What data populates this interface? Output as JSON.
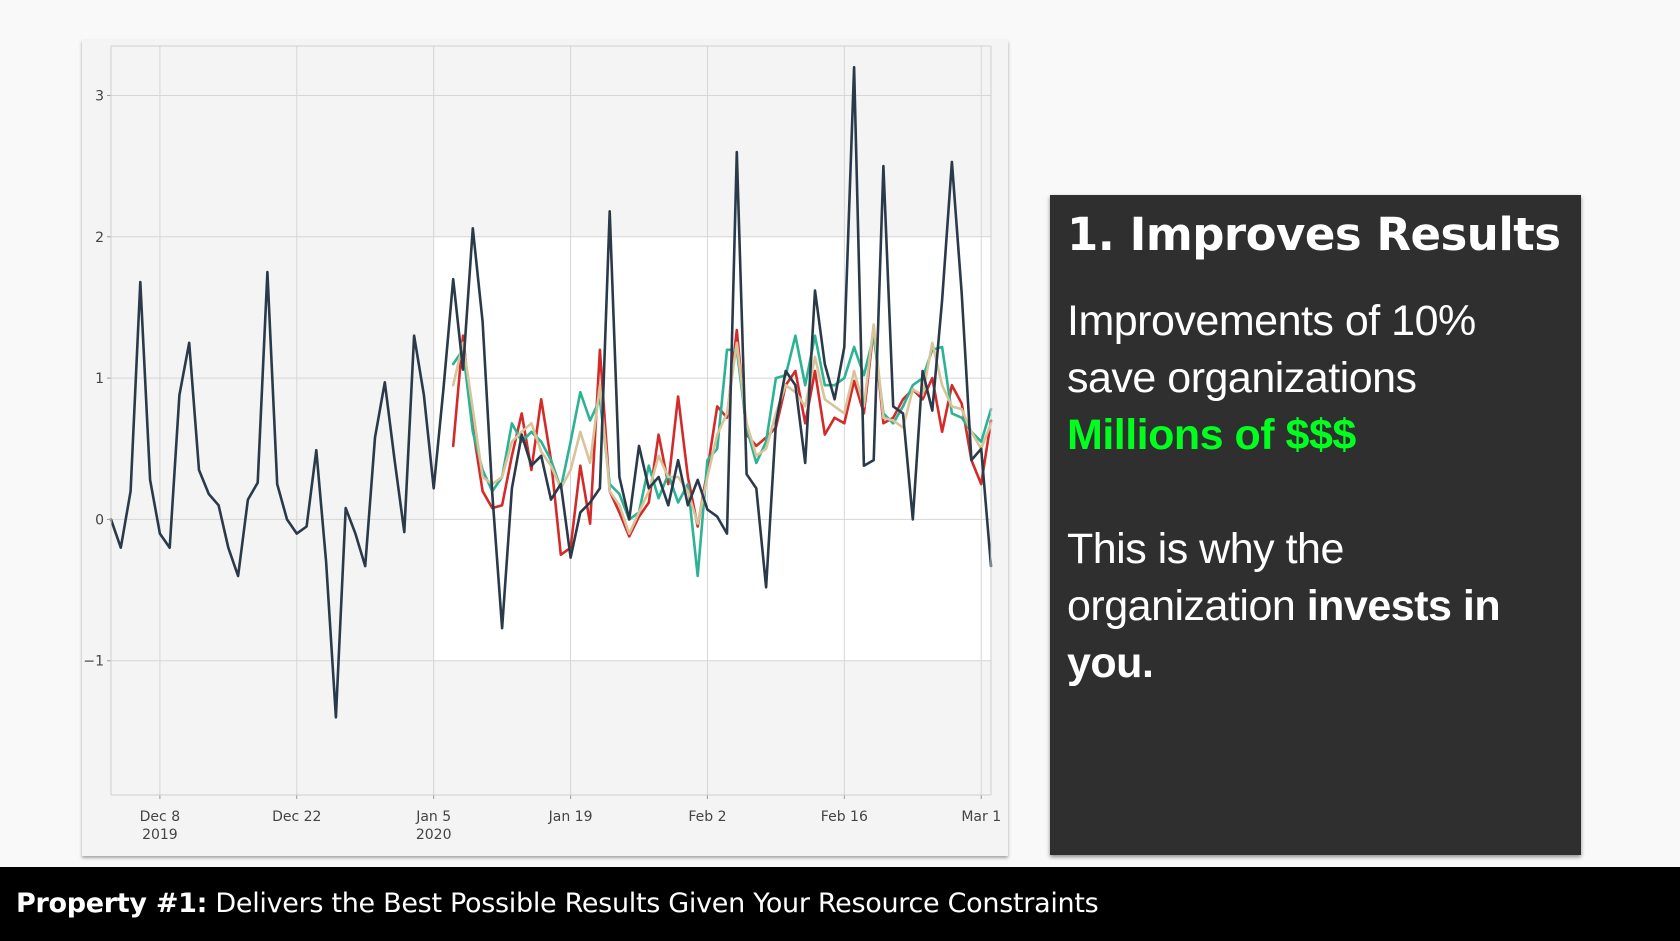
{
  "panel": {
    "heading": "1. Improves Results",
    "line1": "Improvements of 10%",
    "line2": "save organizations",
    "highlight": "Millions of $$$",
    "line4": "This is why the",
    "line5_prefix": "organization ",
    "line5_bold": "invests in",
    "line6_bold": "you."
  },
  "footer": {
    "bold_label": "Property #1:",
    "text": " Delivers the Best Possible Results Given Your Resource Constraints"
  },
  "colors": {
    "actual": "#2a3a4a",
    "red": "#d42a2a",
    "teal": "#2bb394",
    "tan": "#d9c398",
    "highlight_green": "#00ff1e",
    "panel_bg": "#2f2f2f"
  },
  "chart_data": {
    "type": "line",
    "x_start": "2019-12-03",
    "x_end": "2020-03-02",
    "xlim": [
      "2019-12-03",
      "2020-03-02"
    ],
    "ylim": [
      -1.95,
      3.35
    ],
    "y_ticks": [
      3,
      2,
      1,
      0,
      -1
    ],
    "y_tick_labels": [
      "3",
      "2",
      "1",
      "0",
      "−1"
    ],
    "x_ticks": [
      {
        "date": "2019-12-08",
        "label": "Dec 8",
        "sublabel": "2019"
      },
      {
        "date": "2019-12-22",
        "label": "Dec 22",
        "sublabel": ""
      },
      {
        "date": "2020-01-05",
        "label": "Jan 5",
        "sublabel": "2020"
      },
      {
        "date": "2020-01-19",
        "label": "Jan 19",
        "sublabel": ""
      },
      {
        "date": "2020-02-02",
        "label": "Feb 2",
        "sublabel": ""
      },
      {
        "date": "2020-02-16",
        "label": "Feb 16",
        "sublabel": ""
      },
      {
        "date": "2020-03-01",
        "label": "Mar 1",
        "sublabel": ""
      }
    ],
    "highlight_region": {
      "x_from": "2020-01-05",
      "x_to": "2020-03-02",
      "y_from": -1,
      "y_to": 2
    },
    "grid": true,
    "series": [
      {
        "color_key": "actual",
        "x": [
          "2019-12-03",
          "2019-12-04",
          "2019-12-05",
          "2019-12-06",
          "2019-12-07",
          "2019-12-08",
          "2019-12-09",
          "2019-12-10",
          "2019-12-11",
          "2019-12-12",
          "2019-12-13",
          "2019-12-14",
          "2019-12-15",
          "2019-12-16",
          "2019-12-17",
          "2019-12-18",
          "2019-12-19",
          "2019-12-20",
          "2019-12-21",
          "2019-12-22",
          "2019-12-23",
          "2019-12-24",
          "2019-12-25",
          "2019-12-26",
          "2019-12-27",
          "2019-12-28",
          "2019-12-29",
          "2019-12-30",
          "2019-12-31",
          "2020-01-01",
          "2020-01-02",
          "2020-01-03",
          "2020-01-04",
          "2020-01-05",
          "2020-01-06",
          "2020-01-07",
          "2020-01-08",
          "2020-01-09",
          "2020-01-10",
          "2020-01-11",
          "2020-01-12",
          "2020-01-13",
          "2020-01-14",
          "2020-01-15",
          "2020-01-16",
          "2020-01-17",
          "2020-01-18",
          "2020-01-19",
          "2020-01-20",
          "2020-01-21",
          "2020-01-22",
          "2020-01-23",
          "2020-01-24",
          "2020-01-25",
          "2020-01-26",
          "2020-01-27",
          "2020-01-28",
          "2020-01-29",
          "2020-01-30",
          "2020-01-31",
          "2020-02-01",
          "2020-02-02",
          "2020-02-03",
          "2020-02-04",
          "2020-02-05",
          "2020-02-06",
          "2020-02-07",
          "2020-02-08",
          "2020-02-09",
          "2020-02-10",
          "2020-02-11",
          "2020-02-12",
          "2020-02-13",
          "2020-02-14",
          "2020-02-15",
          "2020-02-16",
          "2020-02-17",
          "2020-02-18",
          "2020-02-19",
          "2020-02-20",
          "2020-02-21",
          "2020-02-22",
          "2020-02-23",
          "2020-02-24",
          "2020-02-25",
          "2020-02-26",
          "2020-02-27",
          "2020-02-28",
          "2020-02-29",
          "2020-03-01",
          "2020-03-02"
        ],
        "y": [
          0.0,
          -0.2,
          0.2,
          1.68,
          0.28,
          -0.1,
          -0.2,
          0.88,
          1.25,
          0.35,
          0.18,
          0.1,
          -0.2,
          -0.4,
          0.14,
          0.26,
          1.75,
          0.25,
          0.0,
          -0.1,
          -0.05,
          0.49,
          -0.3,
          -1.4,
          0.08,
          -0.1,
          -0.33,
          0.58,
          0.97,
          0.42,
          -0.09,
          1.3,
          0.88,
          0.22,
          0.92,
          1.7,
          1.06,
          2.06,
          1.4,
          0.18,
          -0.77,
          0.22,
          0.6,
          0.38,
          0.45,
          0.14,
          0.25,
          -0.27,
          0.05,
          0.12,
          0.22,
          2.18,
          0.3,
          0.0,
          0.52,
          0.22,
          0.3,
          0.1,
          0.42,
          0.1,
          0.28,
          0.07,
          0.02,
          -0.1,
          2.6,
          0.32,
          0.22,
          -0.48,
          0.68,
          1.05,
          0.95,
          0.4,
          1.62,
          1.1,
          0.85,
          1.22,
          3.2,
          0.38,
          0.42,
          2.5,
          0.8,
          0.75,
          0.0,
          1.05,
          0.77,
          1.55,
          2.53,
          1.6,
          0.42,
          0.5,
          -0.33
        ]
      },
      {
        "color_key": "red",
        "x": [
          "2020-01-07",
          "2020-01-08",
          "2020-01-09",
          "2020-01-10",
          "2020-01-11",
          "2020-01-12",
          "2020-01-13",
          "2020-01-14",
          "2020-01-15",
          "2020-01-16",
          "2020-01-17",
          "2020-01-18",
          "2020-01-19",
          "2020-01-20",
          "2020-01-21",
          "2020-01-22",
          "2020-01-23",
          "2020-01-24",
          "2020-01-25",
          "2020-01-26",
          "2020-01-27",
          "2020-01-28",
          "2020-01-29",
          "2020-01-30",
          "2020-01-31",
          "2020-02-01",
          "2020-02-02",
          "2020-02-03",
          "2020-02-04",
          "2020-02-05",
          "2020-02-06",
          "2020-02-07",
          "2020-02-08",
          "2020-02-09",
          "2020-02-10",
          "2020-02-11",
          "2020-02-12",
          "2020-02-13",
          "2020-02-14",
          "2020-02-15",
          "2020-02-16",
          "2020-02-17",
          "2020-02-18",
          "2020-02-19",
          "2020-02-20",
          "2020-02-21",
          "2020-02-22",
          "2020-02-23",
          "2020-02-24",
          "2020-02-25",
          "2020-02-26",
          "2020-02-27",
          "2020-02-28",
          "2020-02-29",
          "2020-03-01",
          "2020-03-02"
        ],
        "y": [
          0.52,
          1.3,
          0.65,
          0.2,
          0.08,
          0.1,
          0.45,
          0.75,
          0.35,
          0.85,
          0.42,
          -0.25,
          -0.2,
          0.38,
          -0.03,
          1.2,
          0.2,
          0.05,
          -0.12,
          0.02,
          0.12,
          0.6,
          0.25,
          0.87,
          0.3,
          -0.05,
          0.35,
          0.8,
          0.72,
          1.34,
          0.6,
          0.52,
          0.58,
          0.65,
          0.95,
          1.05,
          0.68,
          1.05,
          0.6,
          0.72,
          0.68,
          0.98,
          0.75,
          1.35,
          0.68,
          0.72,
          0.85,
          0.92,
          0.85,
          1.0,
          0.62,
          0.95,
          0.82,
          0.42,
          0.25,
          0.7
        ]
      },
      {
        "color_key": "teal",
        "x": [
          "2020-01-07",
          "2020-01-08",
          "2020-01-09",
          "2020-01-10",
          "2020-01-11",
          "2020-01-12",
          "2020-01-13",
          "2020-01-14",
          "2020-01-15",
          "2020-01-16",
          "2020-01-17",
          "2020-01-18",
          "2020-01-19",
          "2020-01-20",
          "2020-01-21",
          "2020-01-22",
          "2020-01-23",
          "2020-01-24",
          "2020-01-25",
          "2020-01-26",
          "2020-01-27",
          "2020-01-28",
          "2020-01-29",
          "2020-01-30",
          "2020-01-31",
          "2020-02-01",
          "2020-02-02",
          "2020-02-03",
          "2020-02-04",
          "2020-02-05",
          "2020-02-06",
          "2020-02-07",
          "2020-02-08",
          "2020-02-09",
          "2020-02-10",
          "2020-02-11",
          "2020-02-12",
          "2020-02-13",
          "2020-02-14",
          "2020-02-15",
          "2020-02-16",
          "2020-02-17",
          "2020-02-18",
          "2020-02-19",
          "2020-02-20",
          "2020-02-21",
          "2020-02-22",
          "2020-02-23",
          "2020-02-24",
          "2020-02-25",
          "2020-02-26",
          "2020-02-27",
          "2020-02-28",
          "2020-02-29",
          "2020-03-01",
          "2020-03-02"
        ],
        "y": [
          1.1,
          1.2,
          0.62,
          0.35,
          0.2,
          0.3,
          0.68,
          0.55,
          0.62,
          0.55,
          0.42,
          0.22,
          0.55,
          0.9,
          0.7,
          0.85,
          0.25,
          0.18,
          0.0,
          0.05,
          0.38,
          0.15,
          0.32,
          0.12,
          0.25,
          -0.4,
          0.42,
          0.5,
          1.2,
          1.2,
          0.65,
          0.4,
          0.55,
          1.0,
          1.02,
          1.3,
          0.95,
          1.3,
          0.95,
          0.95,
          1.0,
          1.22,
          1.02,
          1.3,
          0.75,
          0.68,
          0.8,
          0.95,
          1.0,
          1.2,
          1.22,
          0.75,
          0.72,
          0.62,
          0.55,
          0.78
        ]
      },
      {
        "color_key": "tan",
        "x": [
          "2020-01-07",
          "2020-01-08",
          "2020-01-09",
          "2020-01-10",
          "2020-01-11",
          "2020-01-12",
          "2020-01-13",
          "2020-01-14",
          "2020-01-15",
          "2020-01-16",
          "2020-01-17",
          "2020-01-18",
          "2020-01-19",
          "2020-01-20",
          "2020-01-21",
          "2020-01-22",
          "2020-01-23",
          "2020-01-24",
          "2020-01-25",
          "2020-01-26",
          "2020-01-27",
          "2020-01-28",
          "2020-01-29",
          "2020-01-30",
          "2020-01-31",
          "2020-02-01",
          "2020-02-02",
          "2020-02-03",
          "2020-02-04",
          "2020-02-05",
          "2020-02-06",
          "2020-02-07",
          "2020-02-08",
          "2020-02-09",
          "2020-02-10",
          "2020-02-11",
          "2020-02-12",
          "2020-02-13",
          "2020-02-14",
          "2020-02-15",
          "2020-02-16",
          "2020-02-17",
          "2020-02-18",
          "2020-02-19",
          "2020-02-20",
          "2020-02-21",
          "2020-02-22",
          "2020-02-23",
          "2020-02-24",
          "2020-02-25",
          "2020-02-26",
          "2020-02-27",
          "2020-02-28",
          "2020-02-29",
          "2020-03-01",
          "2020-03-02"
        ],
        "y": [
          0.95,
          1.25,
          0.78,
          0.3,
          0.25,
          0.3,
          0.55,
          0.62,
          0.68,
          0.48,
          0.38,
          0.22,
          0.35,
          0.62,
          0.4,
          0.95,
          0.2,
          0.1,
          -0.1,
          0.05,
          0.2,
          0.45,
          0.3,
          0.3,
          0.2,
          -0.03,
          0.3,
          0.6,
          0.75,
          1.25,
          0.68,
          0.45,
          0.5,
          0.75,
          0.95,
          0.9,
          0.8,
          1.15,
          0.85,
          0.8,
          0.75,
          1.05,
          0.8,
          1.38,
          0.72,
          0.7,
          0.65,
          0.92,
          0.88,
          1.25,
          0.95,
          0.8,
          0.78,
          0.62,
          0.5,
          0.68
        ]
      }
    ]
  }
}
